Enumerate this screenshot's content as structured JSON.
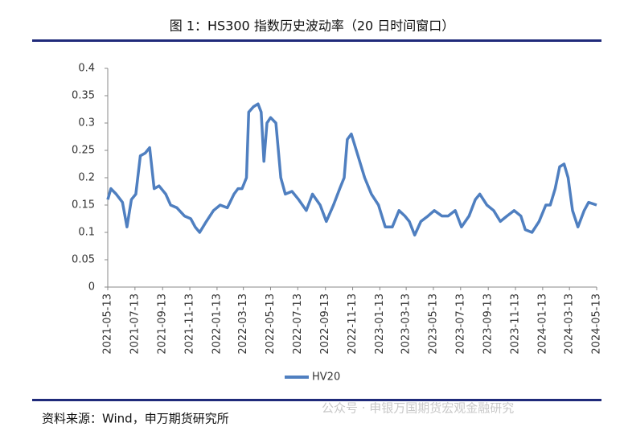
{
  "chart_data": {
    "type": "line",
    "title": "图 1：HS300 指数历史波动率（20 日时间窗口）",
    "source": "资料来源：Wind，申万期货研究所",
    "watermark": "公众号 · 申银万国期货宏观金融研究",
    "legend": "bottom",
    "x": [
      "2021-05-13",
      "2021-05-20",
      "2021-06-01",
      "2021-06-15",
      "2021-06-25",
      "2021-07-05",
      "2021-07-15",
      "2021-07-25",
      "2021-08-05",
      "2021-08-15",
      "2021-08-25",
      "2021-09-05",
      "2021-09-20",
      "2021-10-01",
      "2021-10-15",
      "2021-11-01",
      "2021-11-15",
      "2021-11-25",
      "2021-12-05",
      "2021-12-20",
      "2022-01-05",
      "2022-01-20",
      "2022-02-05",
      "2022-02-20",
      "2022-03-01",
      "2022-03-10",
      "2022-03-20",
      "2022-03-25",
      "2022-04-05",
      "2022-04-15",
      "2022-04-22",
      "2022-04-28",
      "2022-05-05",
      "2022-05-13",
      "2022-05-25",
      "2022-06-05",
      "2022-06-15",
      "2022-06-30",
      "2022-07-15",
      "2022-08-01",
      "2022-08-15",
      "2022-09-01",
      "2022-09-15",
      "2022-10-01",
      "2022-10-15",
      "2022-10-25",
      "2022-11-01",
      "2022-11-10",
      "2022-11-25",
      "2022-12-10",
      "2022-12-25",
      "2023-01-10",
      "2023-01-25",
      "2023-02-10",
      "2023-02-25",
      "2023-03-10",
      "2023-03-20",
      "2023-04-01",
      "2023-04-15",
      "2023-05-01",
      "2023-05-15",
      "2023-06-01",
      "2023-06-15",
      "2023-07-01",
      "2023-07-15",
      "2023-08-01",
      "2023-08-15",
      "2023-08-25",
      "2023-09-10",
      "2023-09-25",
      "2023-10-10",
      "2023-10-25",
      "2023-11-10",
      "2023-11-25",
      "2023-12-05",
      "2023-12-20",
      "2024-01-05",
      "2024-01-20",
      "2024-01-30",
      "2024-02-10",
      "2024-02-20",
      "2024-03-01",
      "2024-03-10",
      "2024-03-20",
      "2024-04-01",
      "2024-04-15",
      "2024-04-25",
      "2024-05-13"
    ],
    "series": [
      {
        "name": "HV20",
        "color": "#4f7fc0",
        "values": [
          0.16,
          0.18,
          0.17,
          0.155,
          0.11,
          0.16,
          0.17,
          0.24,
          0.245,
          0.255,
          0.18,
          0.185,
          0.17,
          0.15,
          0.145,
          0.13,
          0.125,
          0.11,
          0.1,
          0.12,
          0.14,
          0.15,
          0.145,
          0.17,
          0.18,
          0.18,
          0.2,
          0.32,
          0.33,
          0.335,
          0.32,
          0.23,
          0.3,
          0.31,
          0.3,
          0.2,
          0.17,
          0.175,
          0.16,
          0.14,
          0.17,
          0.15,
          0.12,
          0.15,
          0.18,
          0.2,
          0.27,
          0.28,
          0.24,
          0.2,
          0.17,
          0.15,
          0.11,
          0.11,
          0.14,
          0.13,
          0.12,
          0.095,
          0.12,
          0.13,
          0.14,
          0.13,
          0.13,
          0.14,
          0.11,
          0.13,
          0.16,
          0.17,
          0.15,
          0.14,
          0.12,
          0.13,
          0.14,
          0.13,
          0.105,
          0.1,
          0.12,
          0.15,
          0.15,
          0.18,
          0.22,
          0.225,
          0.2,
          0.14,
          0.11,
          0.14,
          0.155,
          0.15
        ]
      }
    ],
    "xlim": [
      "2021-05-13",
      "2024-05-13"
    ],
    "xticks": [
      "2021-05-13",
      "2021-07-13",
      "2021-09-13",
      "2021-11-13",
      "2022-01-13",
      "2022-03-13",
      "2022-05-13",
      "2022-07-13",
      "2022-09-13",
      "2022-11-13",
      "2023-01-13",
      "2023-03-13",
      "2023-05-13",
      "2023-07-13",
      "2023-09-13",
      "2023-11-13",
      "2024-01-13",
      "2024-03-13",
      "2024-05-13"
    ],
    "ylim": [
      0,
      0.4
    ],
    "yticks": [
      0,
      0.05,
      0.1,
      0.15,
      0.2,
      0.25,
      0.3,
      0.35,
      0.4
    ],
    "grid": false
  }
}
